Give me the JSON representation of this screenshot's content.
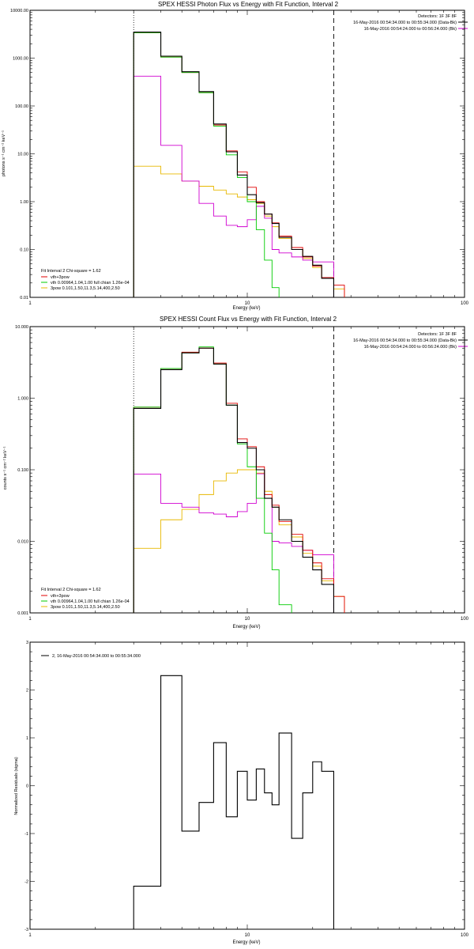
{
  "panel1": {
    "title": "SPEX HESSI Photon Flux vs Energy with Fit Function, Interval 2",
    "xlabel": "Energy (keV)",
    "ylabel": "photons s⁻¹ cm⁻² keV⁻¹",
    "detectors": "Detectors: 1F 3F 8F",
    "time_line1": "16-May-2016 00:54:34.000 to 00:55:34.000 (Data-Bk)",
    "time_line2": "16-May-2016 00:54:24.000 to 00:56:24.000 (Bk)",
    "legend": [
      {
        "label": "Fit Interval 2  Chi-square = 1.62",
        "color": ""
      },
      {
        "label": "vth+3pow",
        "color": "#e00000"
      },
      {
        "label": "vth 0.00964,1.04,1.00  full chian 1.26e-04",
        "color": "#00cc00"
      },
      {
        "label": "3pow 0.101,1.50,11.3,5.14,400,2.50",
        "color": "#e8b800"
      }
    ]
  },
  "panel2": {
    "title": "SPEX HESSI Count Flux vs Energy with Fit Function, Interval 2",
    "xlabel": "Energy (keV)",
    "ylabel": "counts s⁻¹ cm⁻² keV⁻¹",
    "detectors": "Detectors: 1F 3F 8F",
    "time_line1": "16-May-2016 00:54:34.000 to 00:55:34.000 (Data-Bk)",
    "time_line2": "16-May-2016 00:54:24.000 to 00:56:24.000 (Bk)",
    "legend": [
      {
        "label": "Fit Interval 2  Chi-square = 1.62",
        "color": ""
      },
      {
        "label": "vth+3pow",
        "color": "#e00000"
      },
      {
        "label": "vth 0.00964,1.04,1.00  full chian 1.26e-04",
        "color": "#00cc00"
      },
      {
        "label": "3pow 0.101,1.50,11.3,5.14,400,2.50",
        "color": "#e8b800"
      }
    ]
  },
  "panel3": {
    "xlabel": "Energy (keV)",
    "ylabel": "Normalized Residuals (sigma)",
    "legend": [
      {
        "label": "2, 16-May-2016 00:54:34.000 to 00:55:34.000",
        "color": "#000000"
      }
    ]
  },
  "chart_data": [
    {
      "type": "line",
      "title": "SPEX HESSI Photon Flux vs Energy with Fit Function, Interval 2",
      "xlabel": "Energy (keV)",
      "ylabel": "photons s⁻¹ cm⁻² keV⁻¹",
      "xscale": "log",
      "yscale": "log",
      "xlim": [
        1,
        100
      ],
      "ylim": [
        0.01,
        10000
      ],
      "xticks": [
        "1",
        "10",
        "100"
      ],
      "yticks": [
        "0.01",
        "0.10",
        "1.00",
        "10.00",
        "100.00",
        "1000.00",
        "10000.00"
      ],
      "legend_position": "bottom-left",
      "vlines": [
        {
          "x": 3,
          "style": "dotted"
        },
        {
          "x": 25,
          "style": "dashed"
        }
      ],
      "bin_edges": [
        3,
        4,
        5,
        6,
        7,
        8,
        9,
        10,
        11,
        12,
        13,
        14,
        16,
        18,
        20,
        22,
        25,
        28
      ],
      "series": [
        {
          "color": "#000000",
          "values": [
            3500,
            1100,
            520,
            200,
            42,
            11,
            3.6,
            1.4,
            0.95,
            0.55,
            0.35,
            0.18,
            0.1,
            0.072,
            0.047,
            0.025,
            null
          ]
        },
        {
          "name": "vth+3pow",
          "color": "#e00000",
          "values": [
            3400,
            1050,
            500,
            190,
            40,
            11.5,
            4.2,
            2.0,
            1.0,
            0.55,
            0.36,
            0.19,
            0.11,
            0.07,
            0.045,
            0.026,
            0.018
          ]
        },
        {
          "name": "vth",
          "color": "#00cc00",
          "values": [
            3400,
            1050,
            500,
            190,
            38,
            9.5,
            3.2,
            1.0,
            0.26,
            0.06,
            0.016,
            null,
            null,
            null,
            null,
            null,
            null
          ]
        },
        {
          "name": "3pow",
          "color": "#e8b800",
          "values": [
            5.5,
            3.8,
            2.7,
            2.1,
            1.75,
            1.45,
            1.25,
            1.1,
            0.92,
            0.5,
            0.3,
            0.17,
            0.1,
            0.065,
            0.042,
            0.025,
            0.015
          ]
        },
        {
          "color": "#d000d0",
          "values": [
            420,
            15,
            2.7,
            0.92,
            0.5,
            0.32,
            0.3,
            0.42,
            0.8,
            0.45,
            0.1,
            0.085,
            0.07,
            0.06,
            0.055,
            0.055,
            null
          ]
        }
      ]
    },
    {
      "type": "line",
      "title": "SPEX HESSI Count Flux vs Energy with Fit Function, Interval 2",
      "xlabel": "Energy (keV)",
      "ylabel": "counts s⁻¹ cm⁻² keV⁻¹",
      "xscale": "log",
      "yscale": "log",
      "xlim": [
        1,
        100
      ],
      "ylim": [
        0.001,
        10
      ],
      "xticks": [
        "1",
        "10",
        "100"
      ],
      "yticks": [
        "0.001",
        "0.010",
        "0.100",
        "1.000",
        "10.000"
      ],
      "legend_position": "bottom-left",
      "vlines": [
        {
          "x": 3,
          "style": "dotted"
        },
        {
          "x": 25,
          "style": "dashed"
        }
      ],
      "bin_edges": [
        3,
        4,
        5,
        6,
        7,
        8,
        9,
        10,
        11,
        12,
        13,
        14,
        16,
        18,
        20,
        22,
        25,
        28
      ],
      "series": [
        {
          "color": "#000000",
          "values": [
            0.72,
            2.5,
            4.3,
            5.0,
            3.0,
            0.8,
            0.24,
            0.2,
            0.1,
            0.04,
            0.03,
            0.02,
            0.01,
            0.006,
            0.004,
            0.0025,
            null
          ]
        },
        {
          "name": "vth+3pow",
          "color": "#e00000",
          "values": [
            0.75,
            2.6,
            4.4,
            5.0,
            3.1,
            0.85,
            0.27,
            0.21,
            0.11,
            0.045,
            0.032,
            0.019,
            0.0125,
            0.0075,
            0.005,
            0.003,
            0.0017
          ]
        },
        {
          "name": "vth",
          "color": "#00cc00",
          "values": [
            0.75,
            2.6,
            4.3,
            5.2,
            3.0,
            0.8,
            0.23,
            0.11,
            0.04,
            0.013,
            0.004,
            0.0013,
            null,
            null,
            null,
            null,
            null
          ]
        },
        {
          "name": "3pow",
          "color": "#e8b800",
          "values": [
            0.008,
            0.02,
            0.028,
            0.045,
            0.07,
            0.09,
            0.1,
            0.1,
            0.09,
            0.05,
            0.03,
            0.017,
            0.0115,
            0.0068,
            0.0045,
            0.0028,
            0.0017
          ]
        },
        {
          "color": "#d000d0",
          "values": [
            0.087,
            0.034,
            0.03,
            0.025,
            0.024,
            0.022,
            0.026,
            0.034,
            0.088,
            0.04,
            0.01,
            0.0095,
            0.0085,
            0.0075,
            0.0065,
            0.0065,
            null
          ]
        }
      ]
    },
    {
      "type": "line",
      "xlabel": "Energy (keV)",
      "ylabel": "Normalized Residuals (sigma)",
      "xscale": "log",
      "xlim": [
        1,
        100
      ],
      "ylim": [
        -3,
        3
      ],
      "xticks": [
        "1",
        "10",
        "100"
      ],
      "yticks": [
        "-3",
        "-2",
        "-1",
        "0",
        "1",
        "2",
        "3"
      ],
      "legend_position": "top-left",
      "bin_edges": [
        3,
        4,
        5,
        6,
        7,
        8,
        9,
        10,
        11,
        12,
        13,
        14,
        16,
        18,
        20,
        22,
        25
      ],
      "series": [
        {
          "name": "2, 16-May-2016 00:54:34.000 to 00:55:34.000",
          "color": "#000000",
          "values": [
            -2.1,
            2.3,
            -0.95,
            -0.35,
            0.9,
            -0.65,
            0.3,
            -0.3,
            0.35,
            -0.15,
            -0.4,
            1.1,
            -1.1,
            -0.15,
            0.5,
            0.3
          ]
        }
      ]
    }
  ]
}
